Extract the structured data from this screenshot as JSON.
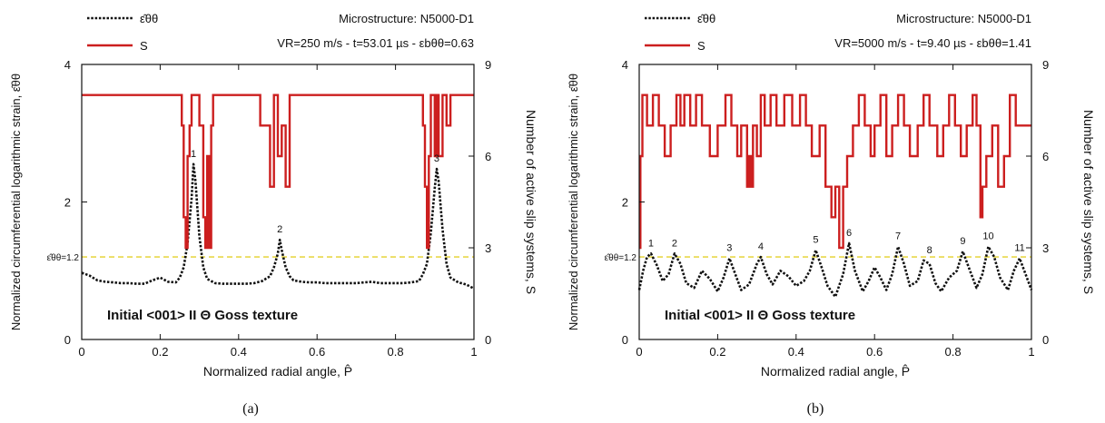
{
  "chart_data": [
    {
      "panel_label": "(a)",
      "type": "line",
      "legend": {
        "placement": "top-left",
        "entries": [
          "ε̂θθ",
          "S"
        ]
      },
      "annotation_top": "Microstructure: N5000-D1",
      "annotation_conditions": "VR=250 m/s - t=53.01 µs - εbθθ=0.63",
      "texture_label": "Initial <001> II Θ Goss texture",
      "threshold_label": "ε̂θθ=1.2",
      "threshold": 1.2,
      "xlabel": "Normalized radial angle, P̂",
      "ylabel_left": "Normalized circumferential logarithmic strain, ε̂θθ",
      "ylabel_right": "Number of active slip systems, S",
      "xlim": [
        0,
        1
      ],
      "ylim_left": [
        0,
        4
      ],
      "ylim_right": [
        0,
        9
      ],
      "xticks": [
        "0",
        "0.2",
        "0.4",
        "0.6",
        "0.8",
        "1"
      ],
      "yticks_left": [
        "0",
        "2",
        "4"
      ],
      "yticks_right": [
        "0",
        "3",
        "6",
        "9"
      ],
      "grid": false,
      "series": [
        {
          "name": "ε̂θθ",
          "axis": "left",
          "color": "#111111",
          "style": "dotted",
          "x": [
            0,
            0.02,
            0.04,
            0.06,
            0.08,
            0.1,
            0.12,
            0.14,
            0.16,
            0.18,
            0.2,
            0.22,
            0.24,
            0.25,
            0.26,
            0.27,
            0.28,
            0.285,
            0.29,
            0.3,
            0.31,
            0.32,
            0.34,
            0.36,
            0.38,
            0.4,
            0.42,
            0.44,
            0.46,
            0.48,
            0.49,
            0.5,
            0.505,
            0.51,
            0.52,
            0.53,
            0.54,
            0.56,
            0.58,
            0.6,
            0.62,
            0.64,
            0.66,
            0.68,
            0.7,
            0.72,
            0.74,
            0.76,
            0.78,
            0.8,
            0.82,
            0.84,
            0.86,
            0.87,
            0.88,
            0.89,
            0.9,
            0.905,
            0.91,
            0.92,
            0.93,
            0.94,
            0.96,
            0.98,
            1
          ],
          "values": [
            0.97,
            0.93,
            0.86,
            0.84,
            0.83,
            0.82,
            0.82,
            0.81,
            0.81,
            0.86,
            0.9,
            0.84,
            0.83,
            0.9,
            1.05,
            1.4,
            2.05,
            2.55,
            2.3,
            1.5,
            1.05,
            0.88,
            0.82,
            0.81,
            0.81,
            0.81,
            0.81,
            0.82,
            0.85,
            0.92,
            1.05,
            1.25,
            1.45,
            1.3,
            1.05,
            0.92,
            0.86,
            0.84,
            0.83,
            0.83,
            0.82,
            0.82,
            0.82,
            0.82,
            0.82,
            0.83,
            0.84,
            0.82,
            0.82,
            0.82,
            0.82,
            0.83,
            0.85,
            0.95,
            1.1,
            1.55,
            2.2,
            2.48,
            2.3,
            1.6,
            1.1,
            0.9,
            0.83,
            0.8,
            0.74
          ]
        },
        {
          "name": "S",
          "axis": "right",
          "color": "#cc1f1f",
          "style": "step",
          "x": [
            0,
            0.245,
            0.255,
            0.26,
            0.265,
            0.27,
            0.275,
            0.28,
            0.29,
            0.3,
            0.31,
            0.315,
            0.32,
            0.325,
            0.33,
            0.335,
            0.45,
            0.455,
            0.47,
            0.48,
            0.49,
            0.5,
            0.51,
            0.52,
            0.53,
            0.54,
            0.86,
            0.87,
            0.875,
            0.88,
            0.885,
            0.89,
            0.9,
            0.905,
            0.91,
            0.92,
            0.93,
            0.94,
            1
          ],
          "values": [
            8,
            8,
            7,
            4,
            3,
            6,
            7,
            8,
            8,
            7,
            4,
            3,
            6,
            3,
            7,
            8,
            8,
            7,
            7,
            5,
            8,
            6,
            7,
            5,
            8,
            8,
            8,
            7,
            5,
            3,
            6,
            8,
            6,
            8,
            6,
            8,
            7,
            8,
            8
          ]
        }
      ],
      "peak_labels": [
        {
          "text": "1",
          "x": 0.285,
          "y": 2.55
        },
        {
          "text": "2",
          "x": 0.505,
          "y": 1.45
        },
        {
          "text": "3",
          "x": 0.905,
          "y": 2.48
        }
      ]
    },
    {
      "panel_label": "(b)",
      "type": "line",
      "legend": {
        "placement": "top-left",
        "entries": [
          "ε̂θθ",
          "S"
        ]
      },
      "annotation_top": "Microstructure: N5000-D1",
      "annotation_conditions": "VR=5000 m/s - t=9.40 µs - εbθθ=1.41",
      "texture_label": "Initial <001> II Θ Goss texture",
      "threshold_label": "ε̂θθ=1.2",
      "threshold": 1.2,
      "xlabel": "Normalized radial angle, P̂",
      "ylabel_left": "Normalized circumferential logarithmic strain, ε̂θθ",
      "ylabel_right": "Number of active slip systems, S",
      "xlim": [
        0,
        1
      ],
      "ylim_left": [
        0,
        4
      ],
      "ylim_right": [
        0,
        9
      ],
      "xticks": [
        "0",
        "0.2",
        "0.4",
        "0.6",
        "0.8",
        "1"
      ],
      "yticks_left": [
        "0",
        "2",
        "4"
      ],
      "yticks_right": [
        "0",
        "3",
        "6",
        "9"
      ],
      "grid": false,
      "series": [
        {
          "name": "ε̂θθ",
          "axis": "left",
          "color": "#111111",
          "style": "dotted",
          "x": [
            0,
            0.01,
            0.02,
            0.03,
            0.045,
            0.06,
            0.075,
            0.09,
            0.105,
            0.12,
            0.14,
            0.16,
            0.18,
            0.2,
            0.215,
            0.23,
            0.245,
            0.26,
            0.28,
            0.3,
            0.31,
            0.325,
            0.34,
            0.36,
            0.38,
            0.4,
            0.42,
            0.435,
            0.45,
            0.465,
            0.48,
            0.5,
            0.52,
            0.535,
            0.55,
            0.57,
            0.585,
            0.6,
            0.615,
            0.63,
            0.645,
            0.66,
            0.675,
            0.69,
            0.71,
            0.725,
            0.74,
            0.755,
            0.77,
            0.79,
            0.81,
            0.825,
            0.84,
            0.86,
            0.875,
            0.89,
            0.905,
            0.92,
            0.94,
            0.955,
            0.97,
            0.985,
            1
          ],
          "values": [
            0.72,
            1.0,
            1.2,
            1.25,
            1.08,
            0.85,
            0.95,
            1.25,
            1.1,
            0.82,
            0.75,
            1.0,
            0.88,
            0.7,
            0.9,
            1.18,
            0.95,
            0.72,
            0.8,
            1.1,
            1.2,
            0.95,
            0.8,
            1.0,
            0.92,
            0.78,
            0.85,
            1.0,
            1.3,
            1.05,
            0.78,
            0.62,
            0.95,
            1.4,
            1.0,
            0.7,
            0.85,
            1.05,
            0.9,
            0.72,
            0.95,
            1.35,
            1.1,
            0.78,
            0.85,
            1.15,
            1.1,
            0.82,
            0.7,
            0.9,
            1.0,
            1.28,
            1.05,
            0.75,
            0.95,
            1.35,
            1.2,
            0.9,
            0.72,
            1.0,
            1.18,
            0.95,
            0.72
          ]
        },
        {
          "name": "S",
          "axis": "right",
          "color": "#cc1f1f",
          "style": "step",
          "x": [
            0,
            0.003,
            0.008,
            0.02,
            0.035,
            0.05,
            0.065,
            0.08,
            0.095,
            0.105,
            0.115,
            0.13,
            0.145,
            0.16,
            0.18,
            0.2,
            0.22,
            0.235,
            0.25,
            0.26,
            0.275,
            0.28,
            0.285,
            0.29,
            0.3,
            0.31,
            0.32,
            0.335,
            0.35,
            0.37,
            0.39,
            0.41,
            0.425,
            0.44,
            0.46,
            0.475,
            0.49,
            0.5,
            0.51,
            0.52,
            0.53,
            0.545,
            0.56,
            0.575,
            0.59,
            0.6,
            0.615,
            0.63,
            0.645,
            0.66,
            0.675,
            0.69,
            0.71,
            0.725,
            0.74,
            0.76,
            0.775,
            0.79,
            0.805,
            0.82,
            0.835,
            0.85,
            0.86,
            0.87,
            0.875,
            0.885,
            0.9,
            0.915,
            0.93,
            0.945,
            0.96,
            0.98,
            1
          ],
          "values": [
            3,
            6,
            8,
            7,
            8,
            7,
            6,
            7,
            8,
            7,
            8,
            7,
            8,
            7,
            6,
            7,
            8,
            7,
            6,
            7,
            5,
            6,
            5,
            7,
            6,
            8,
            7,
            8,
            7,
            8,
            7,
            8,
            7,
            6,
            7,
            5,
            4,
            5,
            3,
            5,
            6,
            7,
            8,
            7,
            6,
            7,
            8,
            6,
            7,
            8,
            7,
            6,
            7,
            8,
            7,
            6,
            7,
            8,
            7,
            6,
            7,
            8,
            7,
            4,
            5,
            6,
            7,
            5,
            6,
            8,
            7,
            7,
            7
          ]
        }
      ],
      "peak_labels": [
        {
          "text": "1",
          "x": 0.03,
          "y": 1.25
        },
        {
          "text": "2",
          "x": 0.09,
          "y": 1.25
        },
        {
          "text": "3",
          "x": 0.23,
          "y": 1.18
        },
        {
          "text": "4",
          "x": 0.31,
          "y": 1.2
        },
        {
          "text": "5",
          "x": 0.45,
          "y": 1.3
        },
        {
          "text": "6",
          "x": 0.535,
          "y": 1.4
        },
        {
          "text": "7",
          "x": 0.66,
          "y": 1.35
        },
        {
          "text": "8",
          "x": 0.74,
          "y": 1.15
        },
        {
          "text": "9",
          "x": 0.825,
          "y": 1.28
        },
        {
          "text": "10",
          "x": 0.89,
          "y": 1.35
        },
        {
          "text": "11",
          "x": 0.97,
          "y": 1.18
        }
      ]
    }
  ]
}
